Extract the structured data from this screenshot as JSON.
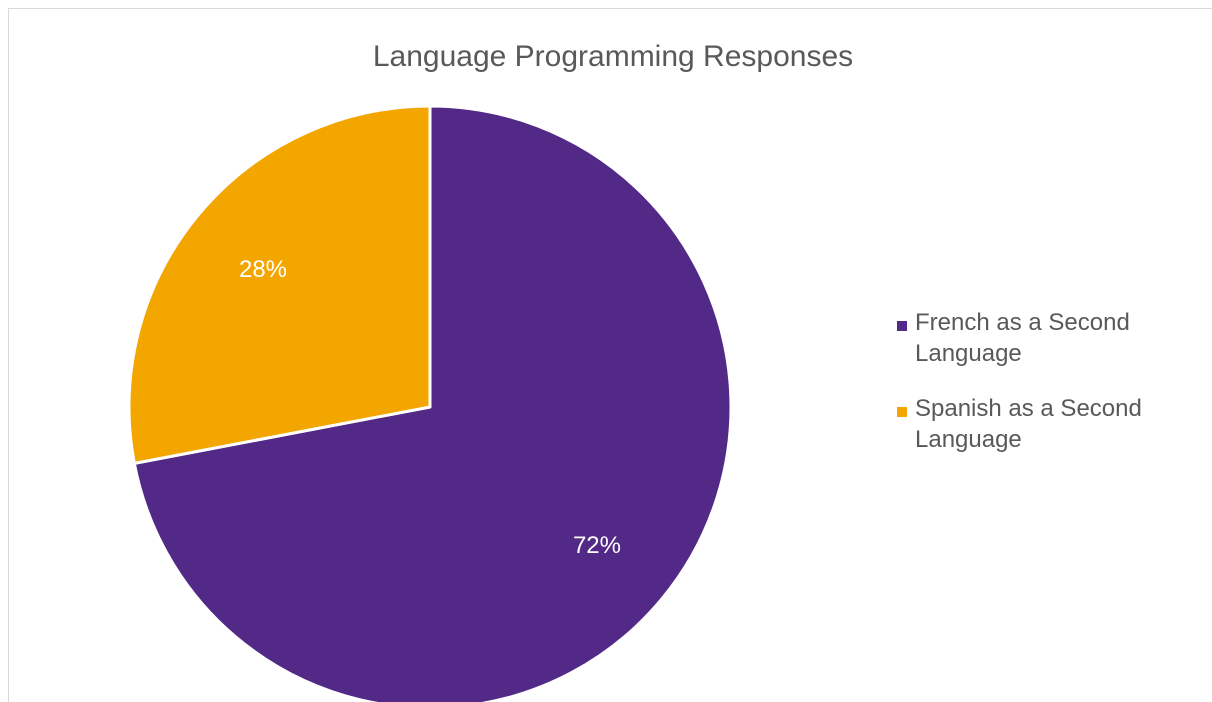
{
  "chart_data": {
    "type": "pie",
    "title": "Language Programming Responses",
    "categories": [
      "French as a Second Language",
      "Spanish as a Second Language"
    ],
    "values": [
      72,
      28
    ],
    "data_labels": [
      "72%",
      "28%"
    ],
    "colors": [
      "#532987",
      "#f3a600"
    ],
    "legend": {
      "placement": "right",
      "entries": [
        {
          "lines": [
            "French as a Second",
            "Language"
          ]
        },
        {
          "lines": [
            "Spanish as a Second",
            "Language"
          ]
        }
      ]
    },
    "start_angle_deg": 0,
    "direction": "clockwise"
  }
}
